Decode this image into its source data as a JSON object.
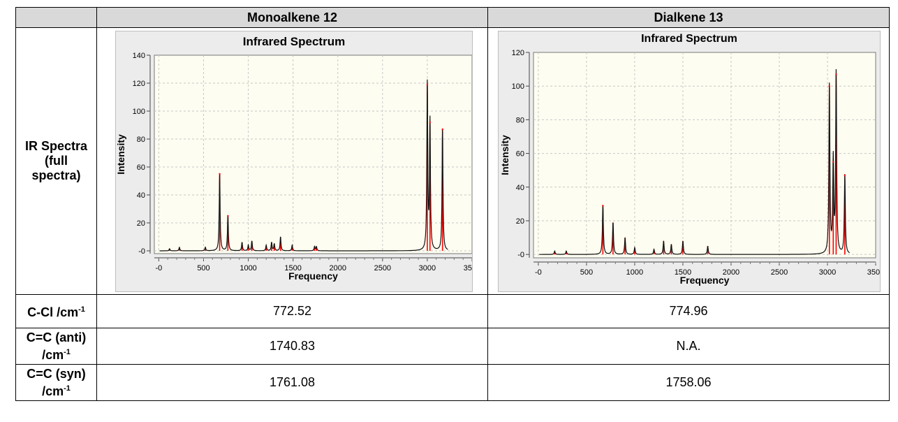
{
  "table": {
    "col1_header": "Monoalkene 12",
    "col2_header": "Dialkene 13",
    "rows": [
      {
        "label_html_parts": [
          "IR Spectra",
          "(full",
          "spectra)"
        ]
      },
      {
        "label": "C-Cl /cm",
        "sup": "-1",
        "v1": "772.52",
        "v2": "774.96"
      },
      {
        "label_line1": "C=C (anti)",
        "label_line2": "/cm",
        "sup": "-1",
        "v1": "1740.83",
        "v2": "N.A."
      },
      {
        "label_line1": "C=C (syn)",
        "label_line2": "/cm",
        "sup": "-1",
        "v1": "1761.08",
        "v2": "1758.06"
      }
    ]
  },
  "chart_data": [
    {
      "type": "line",
      "title": "Infrared Spectrum",
      "xlabel": "Frequency",
      "ylabel": "Intensity",
      "xlim": [
        -50,
        3500
      ],
      "ylim": [
        -2,
        140
      ],
      "xticks": [
        0,
        500,
        1000,
        1500,
        2000,
        2500,
        3000,
        3500
      ],
      "xtick_labels": [
        "-0",
        "500",
        "1000",
        "1500",
        "2000",
        "2500",
        "3000",
        "3500"
      ],
      "yticks": [
        0,
        20,
        40,
        60,
        80,
        100,
        120,
        140
      ],
      "ytick_labels": [
        "-0",
        "20",
        "40",
        "60",
        "80",
        "100",
        "120",
        "140"
      ],
      "grid": true,
      "peaks": [
        [
          120,
          1.5
        ],
        [
          230,
          2.5
        ],
        [
          520,
          2.5
        ],
        [
          680,
          55
        ],
        [
          772,
          25
        ],
        [
          930,
          6
        ],
        [
          1000,
          4
        ],
        [
          1040,
          7
        ],
        [
          1200,
          4
        ],
        [
          1260,
          6
        ],
        [
          1290,
          5
        ],
        [
          1360,
          10
        ],
        [
          1490,
          4
        ],
        [
          1740,
          3
        ],
        [
          1761,
          3
        ],
        [
          3000,
          119
        ],
        [
          3030,
          92
        ],
        [
          3170,
          87
        ]
      ],
      "series": [
        {
          "name": "spectrum",
          "color": "#111111"
        }
      ],
      "stick_color": "#ff0000"
    },
    {
      "type": "line",
      "title": "Infrared Spectrum",
      "xlabel": "Frequency",
      "ylabel": "Intensity",
      "xlim": [
        -50,
        3500
      ],
      "ylim": [
        -2,
        120
      ],
      "xticks": [
        0,
        500,
        1000,
        1500,
        2000,
        2500,
        3000,
        3500
      ],
      "xtick_labels": [
        "-0",
        "500",
        "1000",
        "1500",
        "2000",
        "2500",
        "3000",
        "3500"
      ],
      "yticks": [
        0,
        20,
        40,
        60,
        80,
        100,
        120
      ],
      "ytick_labels": [
        "-0",
        "20",
        "40",
        "60",
        "80",
        "100",
        "120"
      ],
      "grid": true,
      "peaks": [
        [
          170,
          2
        ],
        [
          290,
          2
        ],
        [
          670,
          29
        ],
        [
          775,
          19
        ],
        [
          900,
          10
        ],
        [
          1000,
          4
        ],
        [
          1200,
          3
        ],
        [
          1300,
          8
        ],
        [
          1380,
          6
        ],
        [
          1500,
          8
        ],
        [
          1758,
          5
        ],
        [
          3020,
          100
        ],
        [
          3060,
          55
        ],
        [
          3090,
          107
        ],
        [
          3180,
          47
        ]
      ],
      "series": [
        {
          "name": "spectrum",
          "color": "#111111"
        }
      ],
      "stick_color": "#ff0000"
    }
  ]
}
